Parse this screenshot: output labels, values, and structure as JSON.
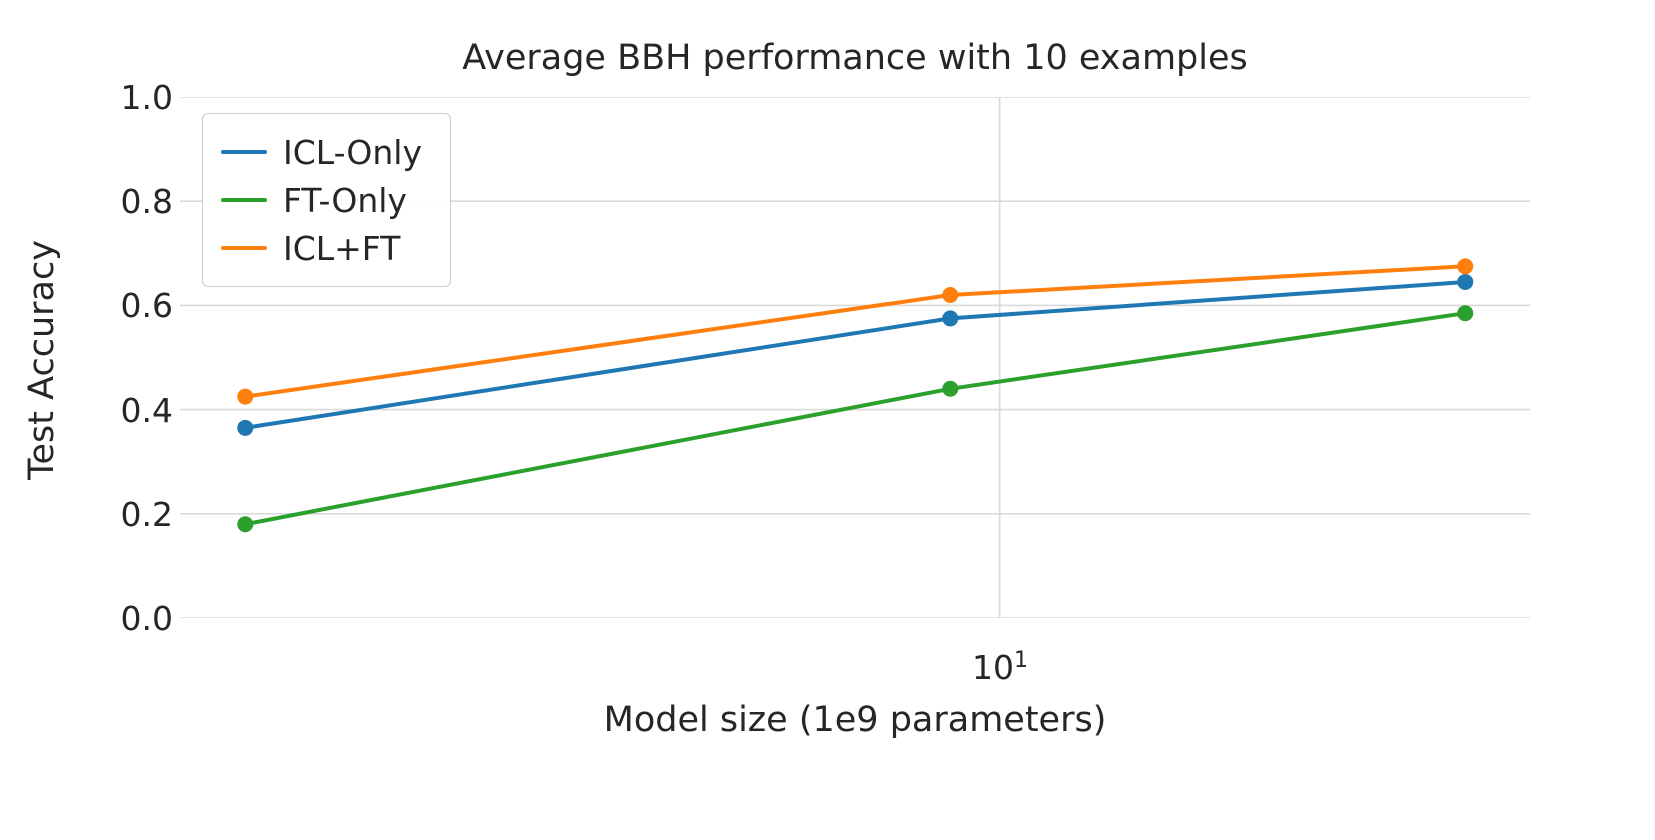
{
  "chart_data": {
    "type": "line",
    "title": "Average BBH performance with 10 examples",
    "xlabel": "Model size (1e9 parameters)",
    "ylabel": "Test Accuracy",
    "x_scale": "log",
    "x": [
      2,
      9,
      27
    ],
    "series": [
      {
        "name": "ICL-Only",
        "color": "#1f77b4",
        "values": [
          0.365,
          0.575,
          0.645
        ]
      },
      {
        "name": "FT-Only",
        "color": "#2ca02c",
        "values": [
          0.18,
          0.44,
          0.585
        ]
      },
      {
        "name": "ICL+FT",
        "color": "#ff7f0e",
        "values": [
          0.425,
          0.62,
          0.675
        ]
      }
    ],
    "xlim": [
      1.74,
      31
    ],
    "ylim": [
      0,
      1
    ],
    "y_ticks": [
      {
        "value": 0.0,
        "label": "0.0"
      },
      {
        "value": 0.2,
        "label": "0.2"
      },
      {
        "value": 0.4,
        "label": "0.4"
      },
      {
        "value": 0.6,
        "label": "0.6"
      },
      {
        "value": 0.8,
        "label": "0.8"
      },
      {
        "value": 1.0,
        "label": "1.0"
      }
    ],
    "x_ticks": [
      {
        "value": 10,
        "base": "10",
        "exponent": "1"
      }
    ],
    "legend_position": "upper left",
    "grid": true,
    "grid_color": "#d9d9d9",
    "text_color": "#262626",
    "background_color": "#ffffff"
  }
}
